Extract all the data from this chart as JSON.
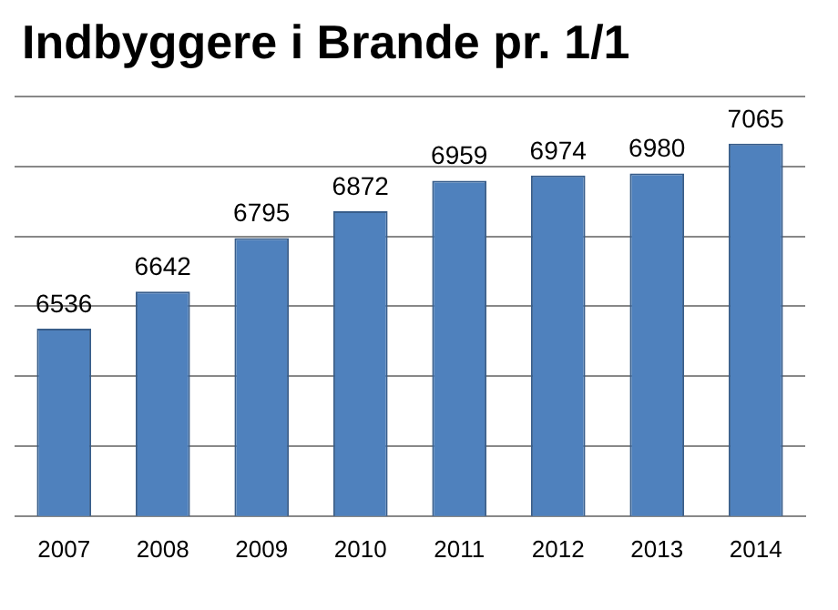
{
  "chart_data": {
    "type": "bar",
    "title": "Indbyggere i Brande pr. 1/1",
    "categories": [
      "2007",
      "2008",
      "2009",
      "2010",
      "2011",
      "2012",
      "2013",
      "2014"
    ],
    "values": [
      6536,
      6642,
      6795,
      6872,
      6959,
      6974,
      6980,
      7065
    ],
    "color": "#4f81bd",
    "ylim": [
      6000,
      7200
    ],
    "yticks": [
      {
        "value": 6000,
        "label": null
      },
      {
        "value": 6200,
        "label": null
      },
      {
        "value": 6400,
        "label": null
      },
      {
        "value": 6600,
        "label": null
      },
      {
        "value": 6800,
        "label": null
      },
      {
        "value": 7000,
        "label": null
      },
      {
        "value": 7200,
        "label": null
      }
    ],
    "tick_labels": "x",
    "grid": "y",
    "data_labels": true,
    "legend": false
  }
}
